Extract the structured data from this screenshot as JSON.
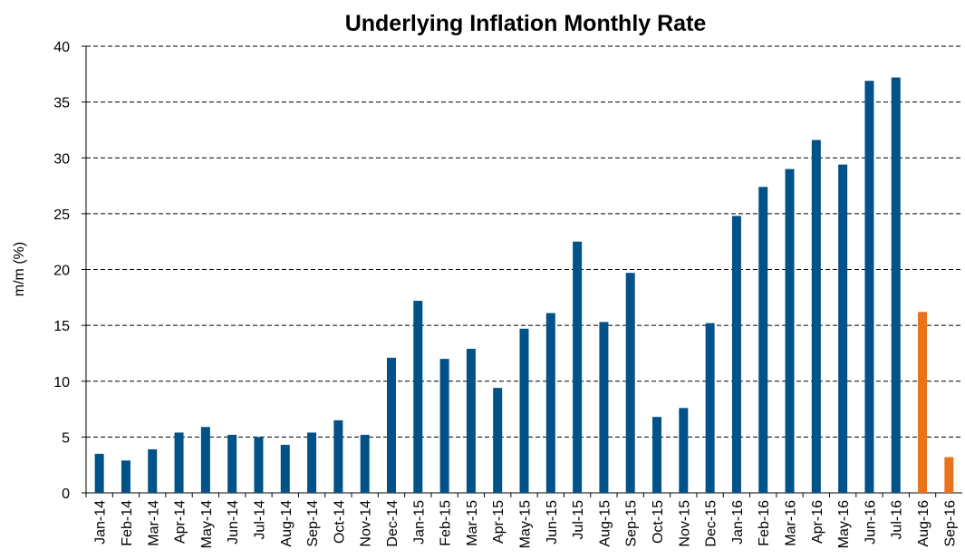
{
  "chart_data": {
    "type": "bar",
    "title": "Underlying Inflation Monthly Rate",
    "y_label": "m/m (%)",
    "categories": [
      "Jan-14",
      "Feb-14",
      "Mar-14",
      "Apr-14",
      "May-14",
      "Jun-14",
      "Jul-14",
      "Aug-14",
      "Sep-14",
      "Oct-14",
      "Nov-14",
      "Dec-14",
      "Jan-15",
      "Feb-15",
      "Mar-15",
      "Apr-15",
      "May-15",
      "Jun-15",
      "Jul-15",
      "Aug-15",
      "Sep-15",
      "Oct-15",
      "Nov-15",
      "Dec-15",
      "Jan-16",
      "Feb-16",
      "Mar-16",
      "Apr-16",
      "May-16",
      "Jun-16",
      "Jul-16",
      "Aug-16",
      "Sep-16"
    ],
    "values": [
      3.5,
      2.9,
      3.9,
      5.4,
      5.9,
      5.2,
      5.0,
      4.3,
      5.4,
      6.5,
      5.2,
      12.1,
      17.2,
      12.0,
      12.9,
      9.4,
      14.7,
      16.1,
      22.5,
      15.3,
      19.7,
      6.8,
      7.6,
      15.2,
      24.8,
      27.4,
      29.0,
      31.6,
      29.4,
      36.9,
      37.2,
      16.2,
      3.2
    ],
    "colors": [
      "#005288",
      "#005288",
      "#005288",
      "#005288",
      "#005288",
      "#005288",
      "#005288",
      "#005288",
      "#005288",
      "#005288",
      "#005288",
      "#005288",
      "#005288",
      "#005288",
      "#005288",
      "#005288",
      "#005288",
      "#005288",
      "#005288",
      "#005288",
      "#005288",
      "#005288",
      "#005288",
      "#005288",
      "#005288",
      "#005288",
      "#005288",
      "#005288",
      "#005288",
      "#005288",
      "#005288",
      "#e8731a",
      "#e8731a"
    ],
    "ylim": [
      0,
      40
    ],
    "yticks": [
      0,
      5,
      10,
      15,
      20,
      25,
      30,
      35,
      40
    ],
    "grid": true
  }
}
